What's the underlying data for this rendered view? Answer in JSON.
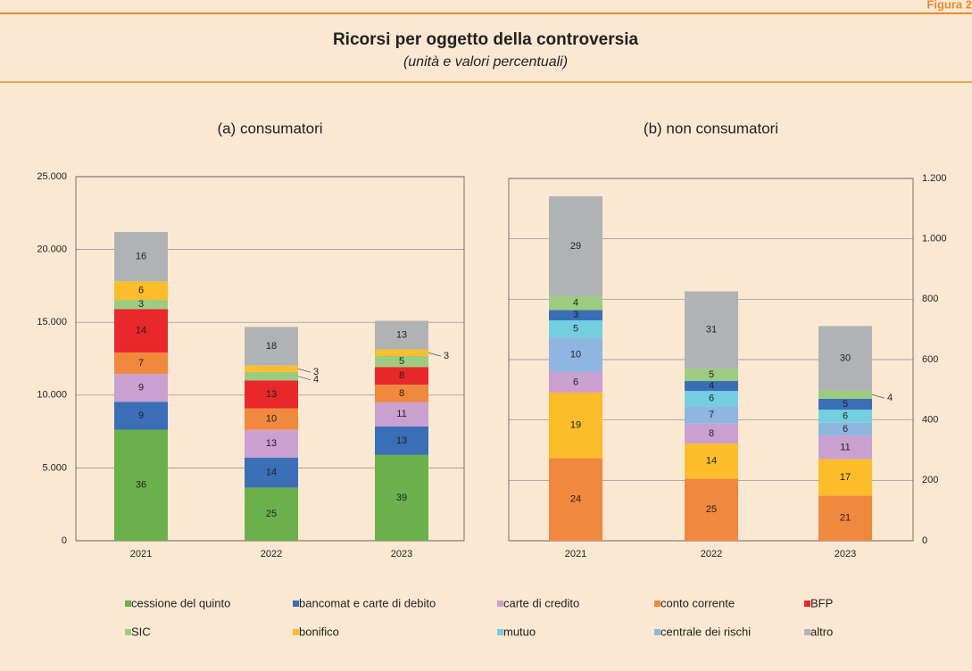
{
  "figure_label": "Figura 2",
  "title": "Ricorsi per oggetto della controversia",
  "subtitle": "(unità e valori percentuali)",
  "chart_data": [
    {
      "type": "stacked-bar",
      "title": "(a) consumatori",
      "axis_side": "left",
      "categories": [
        "2021",
        "2022",
        "2023"
      ],
      "ylim": [
        0,
        25000
      ],
      "yticks": [
        0,
        {
          "value": 5000,
          "label": "5.000"
        },
        {
          "value": 10000,
          "label": "10.000"
        },
        {
          "value": 15000,
          "label": "15.000"
        },
        {
          "value": 20000,
          "label": "20.000"
        },
        {
          "value": 25000,
          "label": "25.000"
        }
      ],
      "grid": true,
      "series": [
        {
          "name": "cessione del quinto",
          "color": "#6ab04c",
          "values": [
            7630,
            3650,
            5890
          ],
          "value_labels": [
            "36",
            "25",
            "39"
          ]
        },
        {
          "name": "bancomat e carte di debito",
          "color": "#3a6fb7",
          "values": [
            1910,
            2060,
            1960
          ],
          "value_labels": [
            "9",
            "14",
            "13"
          ]
        },
        {
          "name": "carte di credito",
          "color": "#c9a0d0",
          "values": [
            1910,
            1910,
            1660
          ],
          "value_labels": [
            "9",
            "13",
            "11"
          ]
        },
        {
          "name": "conto corrente",
          "color": "#f0883e",
          "values": [
            1480,
            1470,
            1210
          ],
          "value_labels": [
            "7",
            "10",
            "8"
          ]
        },
        {
          "name": "BFP",
          "color": "#e8282b",
          "values": [
            2970,
            1910,
            1210
          ],
          "value_labels": [
            "14",
            "13",
            "8"
          ]
        },
        {
          "name": "SIC",
          "color": "#9ccc82",
          "values": [
            640,
            590,
            760
          ],
          "value_labels": [
            "3",
            "4",
            "5"
          ]
        },
        {
          "name": "bonifico",
          "color": "#fbbd2a",
          "values": [
            1270,
            440,
            450
          ],
          "value_labels": [
            "6",
            "3",
            "3"
          ]
        },
        {
          "name": "mutuo",
          "color": "#73cfe0",
          "values": [
            null,
            null,
            null
          ]
        },
        {
          "name": "centrale dei rischi",
          "color": "#8eb6e0",
          "values": [
            null,
            null,
            null
          ]
        },
        {
          "name": "altro",
          "color": "#b0b3b5",
          "values": [
            3390,
            2650,
            1960
          ],
          "value_labels": [
            "16",
            "18",
            "13"
          ]
        }
      ]
    },
    {
      "type": "stacked-bar",
      "title": "(b) non consumatori",
      "axis_side": "right",
      "categories": [
        "2021",
        "2022",
        "2023"
      ],
      "ylim": [
        0,
        1200
      ],
      "yticks": [
        0,
        200,
        400,
        600,
        800,
        {
          "value": 1000,
          "label": "1.000"
        },
        {
          "value": 1200,
          "label": "1.200"
        }
      ],
      "grid": true,
      "series": [
        {
          "name": "conto corrente",
          "color": "#f0883e",
          "values": [
            274,
            206,
            149
          ],
          "value_labels": [
            "24",
            "25",
            "21"
          ]
        },
        {
          "name": "bonifico",
          "color": "#fbbd2a",
          "values": [
            217,
            116,
            121
          ],
          "value_labels": [
            "19",
            "14",
            "17"
          ]
        },
        {
          "name": "carte di credito",
          "color": "#c9a0d0",
          "values": [
            68,
            66,
            78
          ],
          "value_labels": [
            "6",
            "8",
            "11"
          ]
        },
        {
          "name": "centrale dei rischi",
          "color": "#8eb6e0",
          "values": [
            114,
            58,
            43
          ],
          "value_labels": [
            "10",
            "7",
            "6"
          ]
        },
        {
          "name": "mutuo",
          "color": "#73cfe0",
          "values": [
            57,
            50,
            43
          ],
          "value_labels": [
            "5",
            "6",
            "6"
          ]
        },
        {
          "name": "bancomat e carte di debito",
          "color": "#3a6fb7",
          "values": [
            34,
            33,
            36
          ],
          "value_labels": [
            "3",
            "4",
            "5"
          ]
        },
        {
          "name": "SIC",
          "color": "#9ccc82",
          "values": [
            46,
            41,
            28
          ],
          "value_labels": [
            "4",
            "5",
            "4"
          ]
        },
        {
          "name": "altro",
          "color": "#b0b3b5",
          "values": [
            331,
            256,
            213
          ],
          "value_labels": [
            "29",
            "31",
            "30"
          ]
        }
      ]
    }
  ]
}
